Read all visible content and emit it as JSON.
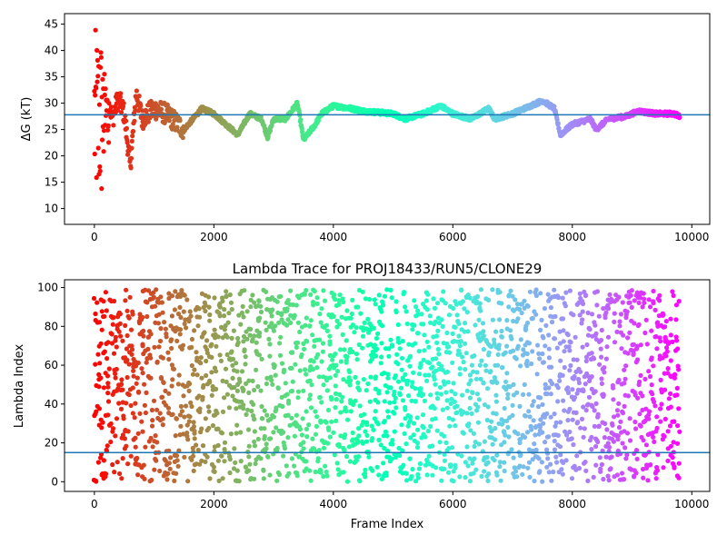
{
  "chart_data": [
    {
      "type": "scatter",
      "title": "",
      "xlabel": "",
      "ylabel": "ΔG (kT)",
      "xlim": [
        -500,
        10300
      ],
      "ylim": [
        7,
        47
      ],
      "xticks": [
        0,
        2000,
        4000,
        6000,
        8000,
        10000
      ],
      "yticks": [
        10,
        15,
        20,
        25,
        30,
        35,
        40,
        45
      ],
      "xtick_labels": [
        "0",
        "2000",
        "4000",
        "6000",
        "8000",
        "10000"
      ],
      "ytick_labels": [
        "10",
        "15",
        "20",
        "25",
        "30",
        "35",
        "40",
        "45"
      ],
      "hline": 27.8,
      "hline_color": "#1f77b4",
      "colormap": "rainbow (red at frame 0 → violet at last frame)",
      "grid": false,
      "legend": "none",
      "x_range_points": [
        0,
        9800
      ],
      "trace": [
        [
          0,
          10
        ],
        [
          20,
          44
        ],
        [
          40,
          18
        ],
        [
          60,
          36
        ],
        [
          80,
          12
        ],
        [
          100,
          30
        ],
        [
          150,
          22
        ],
        [
          200,
          33
        ],
        [
          300,
          27
        ],
        [
          400,
          31
        ],
        [
          500,
          28
        ],
        [
          600,
          18
        ],
        [
          700,
          32
        ],
        [
          800,
          27
        ],
        [
          1000,
          29
        ],
        [
          1200,
          28
        ],
        [
          1500,
          25
        ],
        [
          1800,
          29
        ],
        [
          2000,
          28
        ],
        [
          2200,
          26
        ],
        [
          2400,
          24
        ],
        [
          2600,
          28
        ],
        [
          2800,
          27
        ],
        [
          2900,
          23.5
        ],
        [
          3000,
          27
        ],
        [
          3200,
          27
        ],
        [
          3400,
          30
        ],
        [
          3500,
          23
        ],
        [
          3700,
          26
        ],
        [
          3800,
          28
        ],
        [
          4000,
          29.5
        ],
        [
          4300,
          29
        ],
        [
          4500,
          28.5
        ],
        [
          5000,
          28
        ],
        [
          5200,
          27
        ],
        [
          5500,
          28
        ],
        [
          5800,
          29.5
        ],
        [
          6000,
          28
        ],
        [
          6300,
          27
        ],
        [
          6600,
          29
        ],
        [
          6700,
          27
        ],
        [
          7000,
          28
        ],
        [
          7300,
          29.5
        ],
        [
          7500,
          30.5
        ],
        [
          7700,
          29
        ],
        [
          7800,
          24
        ],
        [
          8000,
          26
        ],
        [
          8300,
          27
        ],
        [
          8400,
          25
        ],
        [
          8600,
          27
        ],
        [
          8900,
          27.5
        ],
        [
          9100,
          28.5
        ],
        [
          9400,
          28
        ],
        [
          9700,
          28
        ],
        [
          9800,
          27.5
        ]
      ]
    },
    {
      "type": "scatter",
      "title": "Lambda Trace for PROJ18433/RUN5/CLONE29",
      "xlabel": "Frame Index",
      "ylabel": "Lambda Index",
      "xlim": [
        -500,
        10300
      ],
      "ylim": [
        -5,
        104
      ],
      "xticks": [
        0,
        2000,
        4000,
        6000,
        8000,
        10000
      ],
      "yticks": [
        0,
        20,
        40,
        60,
        80,
        100
      ],
      "xtick_labels": [
        "0",
        "2000",
        "4000",
        "6000",
        "8000",
        "10000"
      ],
      "ytick_labels": [
        "0",
        "20",
        "40",
        "60",
        "80",
        "100"
      ],
      "hline": 15,
      "hline_color": "#1f77b4",
      "colormap": "rainbow (red at frame 0 → violet at last frame)",
      "grid": false,
      "legend": "none",
      "x_range_points": [
        0,
        9800
      ],
      "y_range_points": [
        0,
        99
      ]
    }
  ]
}
